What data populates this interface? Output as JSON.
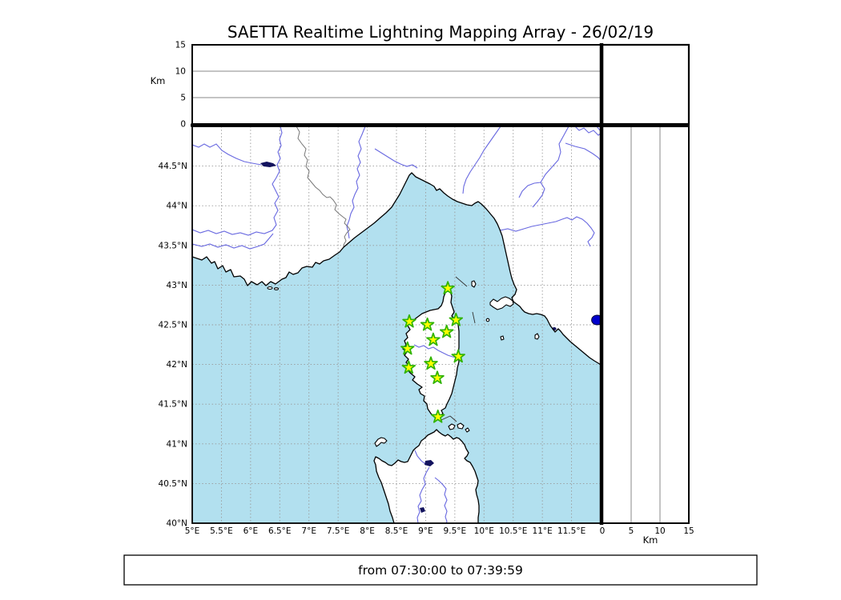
{
  "title": "SAETTA Realtime Lightning Mapping Array - 26/02/19",
  "footer": {
    "time_range": "from 07:30:00 to 07:39:59"
  },
  "axes": {
    "altitude_label": "Km",
    "lon_tick_labels": [
      "5°E",
      "5.5°E",
      "6°E",
      "6.5°E",
      "7°E",
      "7.5°E",
      "8°E",
      "8.5°E",
      "9°E",
      "9.5°E",
      "10°E",
      "10.5°E",
      "11°E",
      "11.5°E"
    ],
    "lat_tick_labels": [
      "44.5°N",
      "44°N",
      "43.5°N",
      "43°N",
      "42.5°N",
      "42°N",
      "41.5°N",
      "41°N",
      "40.5°N",
      "40°N"
    ],
    "altitude_tick_labels": [
      "0",
      "5",
      "10",
      "15"
    ]
  },
  "colors": {
    "sea": "#b2e0ef",
    "land": "#ffffff",
    "coastline": "#000000",
    "river": "#6868e0",
    "country_border": "#777777",
    "grid": "#999999",
    "panel_gridline": "#888888",
    "lake": "#13135e",
    "station_fill": "#ffff00",
    "station_stroke": "#2fb300",
    "detection_fill": "#0000cc"
  },
  "chart_data": {
    "type": "scatter",
    "subtype": "lightning-mapping-array-geographic-display",
    "title": "SAETTA Realtime Lightning Mapping Array - 26/02/19",
    "time_window": "from 07:30:00 to 07:39:59",
    "map_panel": {
      "lon_range": [
        5,
        12
      ],
      "lat_range": [
        40,
        45
      ],
      "lon_ticks": [
        5,
        5.5,
        6,
        6.5,
        7,
        7.5,
        8,
        8.5,
        9,
        9.5,
        10,
        10.5,
        11,
        11.5
      ],
      "lat_ticks": [
        44.5,
        44,
        43.5,
        43,
        42.5,
        42,
        41.5,
        41,
        40.5,
        40
      ],
      "grid": "dashed 0.5 degree"
    },
    "altitude_panels": {
      "label": "Km",
      "range_km": [
        0,
        15
      ],
      "ticks_km": [
        0,
        5,
        10,
        15
      ],
      "gridlines_km": [
        5,
        10
      ],
      "points": []
    },
    "stations_lonlat": [
      [
        9.38,
        42.96
      ],
      [
        8.72,
        42.54
      ],
      [
        9.03,
        42.5
      ],
      [
        9.52,
        42.56
      ],
      [
        9.36,
        42.41
      ],
      [
        9.13,
        42.31
      ],
      [
        8.69,
        42.2
      ],
      [
        9.56,
        42.1
      ],
      [
        8.71,
        41.96
      ],
      [
        9.09,
        42.01
      ],
      [
        9.2,
        41.83
      ],
      [
        9.21,
        41.34
      ]
    ],
    "detections_lonlat": [
      [
        11.94,
        42.56
      ]
    ]
  }
}
